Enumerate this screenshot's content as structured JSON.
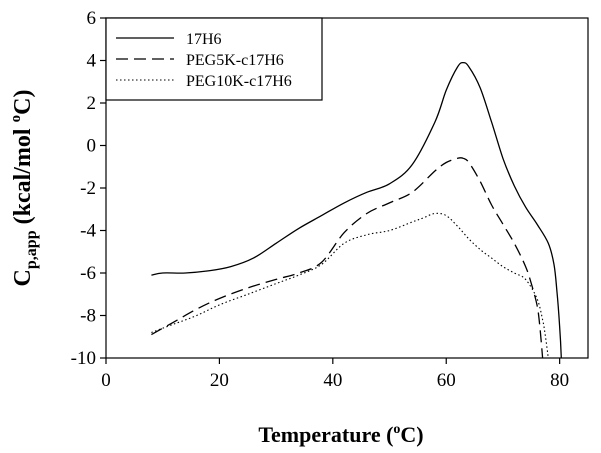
{
  "chart_data": {
    "type": "line",
    "xlabel": {
      "main": "Temperature (",
      "sup": "o",
      "tail": "C)"
    },
    "ylabel": {
      "main": "C",
      "sub": "p,app",
      "mid": " (kcal/mol ",
      "sup": "o",
      "tail": "C)"
    },
    "xlim": [
      0,
      85
    ],
    "ylim": [
      -10,
      6
    ],
    "xticks": [
      0,
      20,
      40,
      60,
      80
    ],
    "yticks": [
      -10,
      -8,
      -6,
      -4,
      -2,
      0,
      2,
      4,
      6
    ],
    "grid": false,
    "legend_position": "top-left",
    "series": [
      {
        "name": "17H6",
        "style": "solid",
        "color": "#000000",
        "x": [
          8,
          10,
          14,
          18,
          22,
          26,
          30,
          34,
          38,
          42,
          46,
          50,
          54,
          58,
          60,
          62,
          63,
          64,
          66,
          68,
          70,
          72,
          74,
          76,
          78,
          79,
          79.5,
          80,
          80.3
        ],
        "y": [
          -6.1,
          -6.0,
          -6.0,
          -5.9,
          -5.7,
          -5.3,
          -4.6,
          -3.9,
          -3.3,
          -2.7,
          -2.2,
          -1.8,
          -0.9,
          1.1,
          2.6,
          3.7,
          3.9,
          3.7,
          2.7,
          1.1,
          -0.6,
          -1.9,
          -2.9,
          -3.7,
          -4.6,
          -5.6,
          -6.8,
          -8.5,
          -10.0
        ]
      },
      {
        "name": "PEG5K-c17H6",
        "style": "dashed",
        "color": "#000000",
        "x": [
          8,
          12,
          16,
          20,
          25,
          30,
          34,
          38,
          42,
          46,
          50,
          54,
          58,
          60,
          62,
          63,
          64,
          66,
          68,
          70,
          72,
          74,
          75,
          76,
          76.5,
          77
        ],
        "y": [
          -8.9,
          -8.3,
          -7.7,
          -7.2,
          -6.7,
          -6.3,
          -6.0,
          -5.5,
          -4.1,
          -3.2,
          -2.7,
          -2.2,
          -1.2,
          -0.8,
          -0.6,
          -0.6,
          -0.8,
          -1.7,
          -2.8,
          -3.7,
          -4.6,
          -5.7,
          -6.5,
          -7.5,
          -8.5,
          -10.0
        ]
      },
      {
        "name": "PEG10K-c17H6",
        "style": "dotted",
        "color": "#000000",
        "x": [
          8,
          12,
          16,
          20,
          25,
          30,
          34,
          38,
          42,
          46,
          50,
          54,
          56,
          58,
          60,
          62,
          64,
          66,
          68,
          70,
          72,
          74,
          76,
          77,
          77.5,
          78
        ],
        "y": [
          -8.8,
          -8.4,
          -8.0,
          -7.5,
          -7.0,
          -6.5,
          -6.1,
          -5.6,
          -4.6,
          -4.2,
          -4.0,
          -3.6,
          -3.4,
          -3.2,
          -3.3,
          -3.8,
          -4.4,
          -4.9,
          -5.3,
          -5.7,
          -6.0,
          -6.3,
          -7.2,
          -8.2,
          -9.0,
          -10.0
        ]
      }
    ]
  }
}
